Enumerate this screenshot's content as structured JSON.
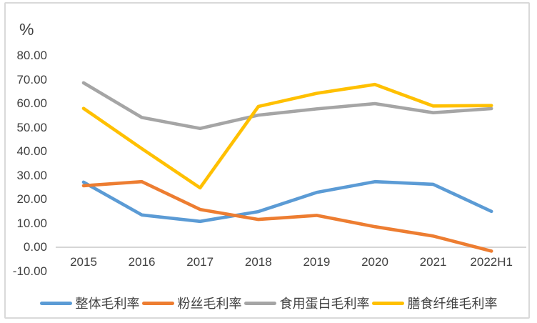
{
  "chart_data": {
    "type": "line",
    "title": "",
    "ylabel": "%",
    "xlabel": "",
    "categories": [
      "2015",
      "2016",
      "2017",
      "2018",
      "2019",
      "2020",
      "2021",
      "2022H1"
    ],
    "series": [
      {
        "name": "整体毛利率",
        "color": "#5B9BD5",
        "values": [
          27.2,
          13.5,
          10.8,
          14.9,
          22.9,
          27.4,
          26.3,
          15.0
        ]
      },
      {
        "name": "粉丝毛利率",
        "color": "#ED7D31",
        "values": [
          25.7,
          27.4,
          15.8,
          11.6,
          13.3,
          8.6,
          4.7,
          -1.6
        ]
      },
      {
        "name": "食用蛋白毛利率",
        "color": "#A5A5A5",
        "values": [
          68.7,
          54.2,
          49.6,
          55.2,
          57.8,
          60.0,
          56.2,
          57.9
        ]
      },
      {
        "name": "膳食纤维毛利率",
        "color": "#FFC000",
        "values": [
          58.0,
          41.2,
          24.8,
          58.8,
          64.3,
          68.0,
          59.0,
          59.2
        ]
      }
    ],
    "y_axis": {
      "min": -10,
      "max": 80,
      "tick_labels": [
        "80.00",
        "70.00",
        "60.00",
        "50.00",
        "40.00",
        "30.00",
        "20.00",
        "10.00",
        "0.00",
        "-10.00"
      ],
      "tick_values": [
        80,
        70,
        60,
        50,
        40,
        30,
        20,
        10,
        0,
        -10
      ]
    },
    "grid": false,
    "legend_position": "bottom"
  },
  "colors": {
    "text": "#404040",
    "axis_line": "#c9c9c9",
    "border": "#d9d9d9",
    "background": "#ffffff"
  }
}
